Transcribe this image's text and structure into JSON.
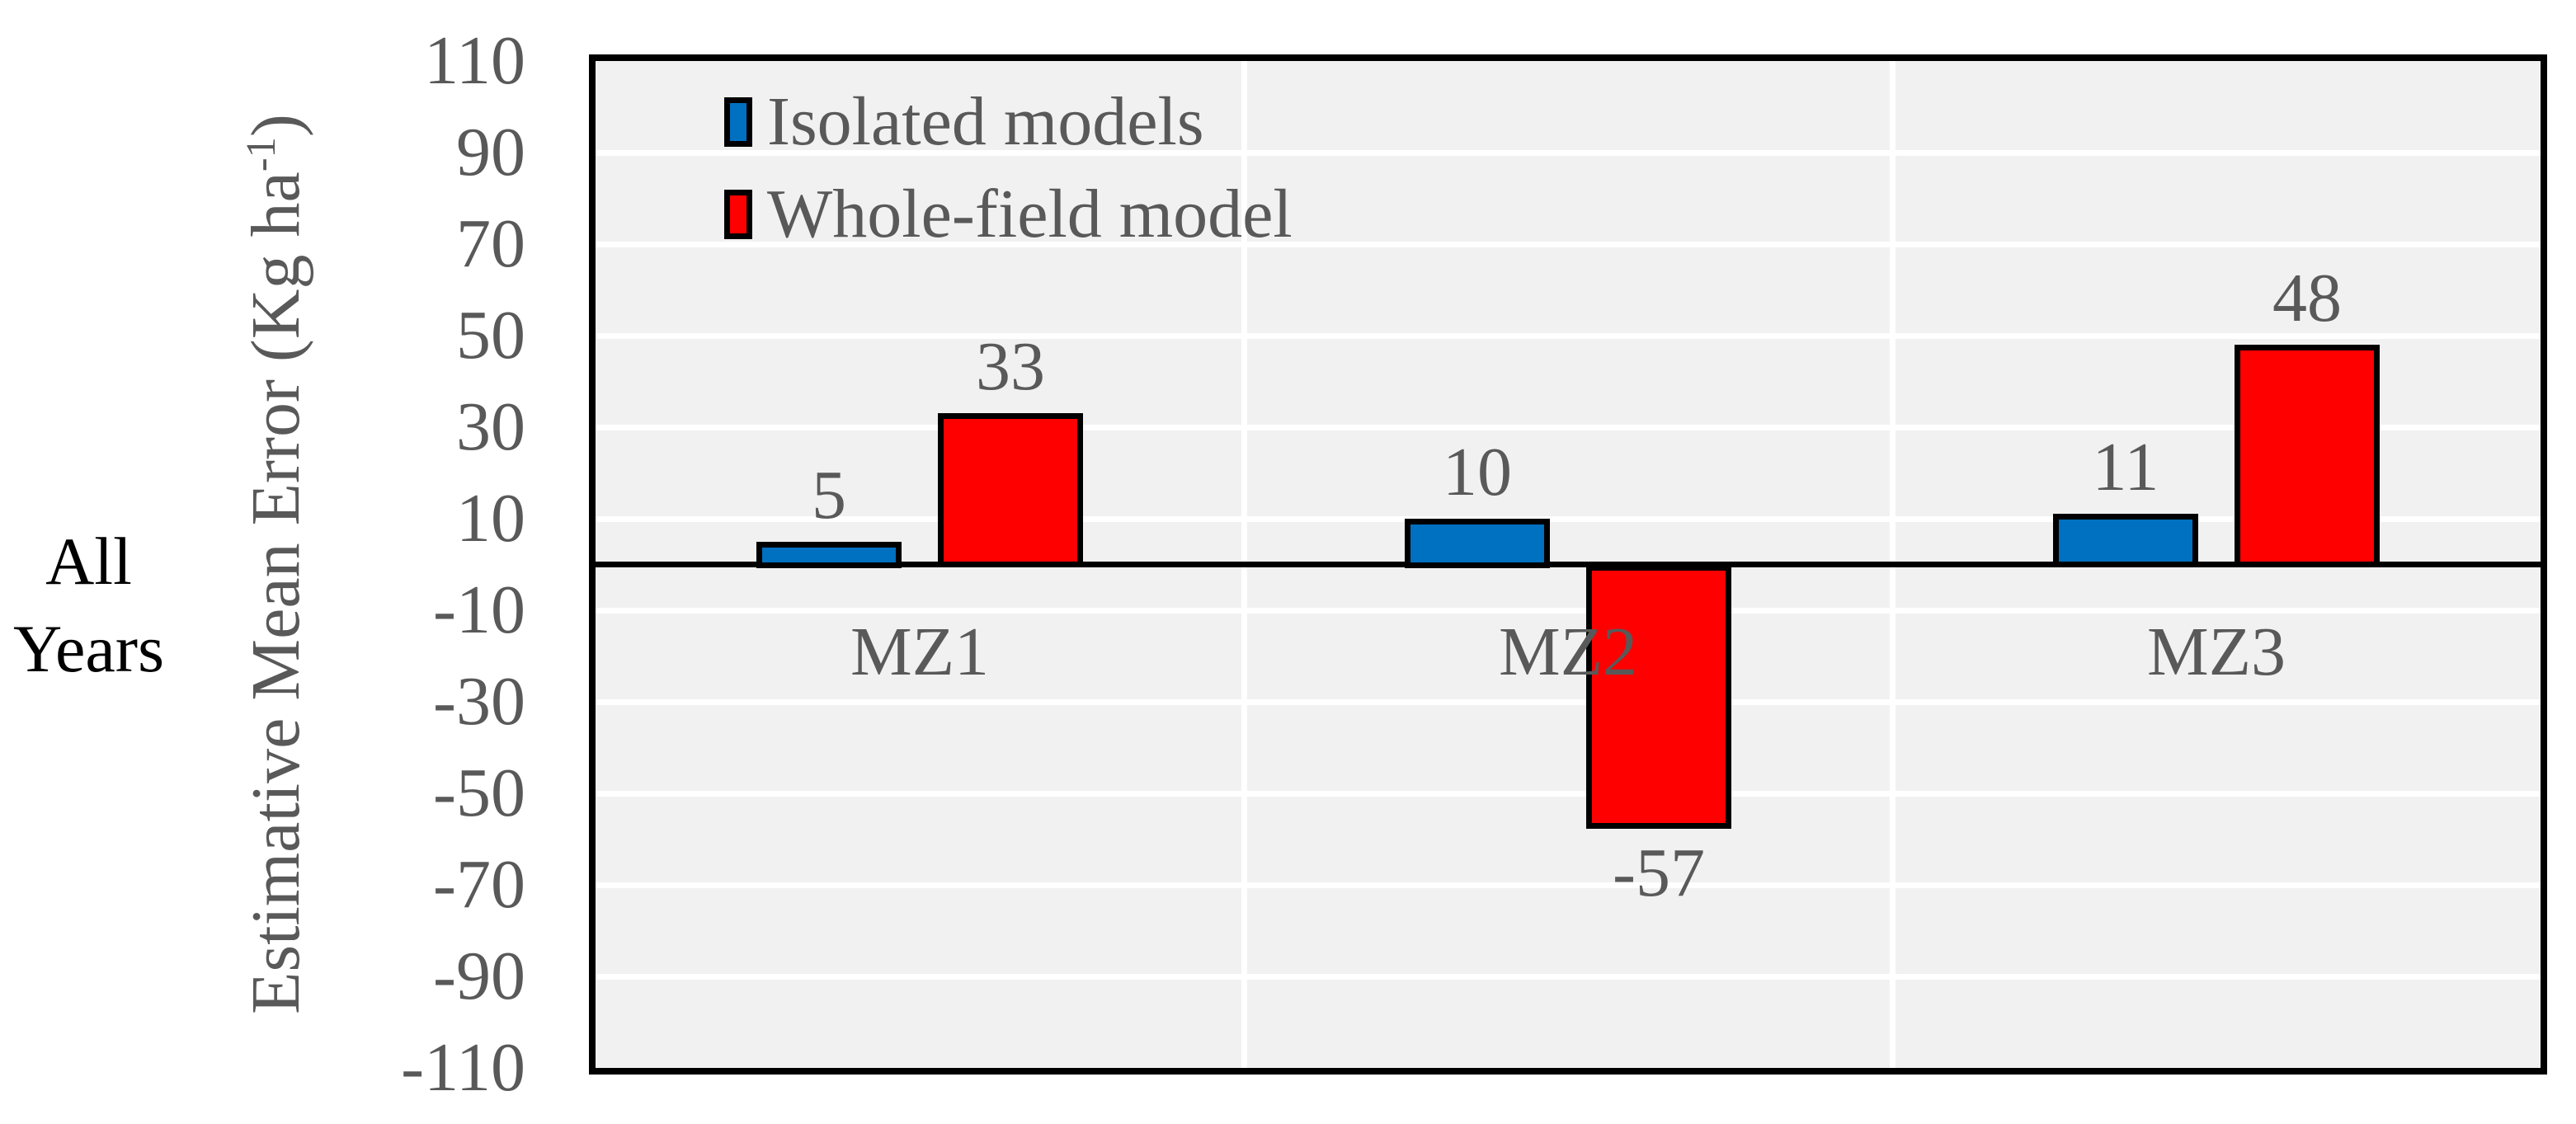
{
  "row_label": {
    "lines": [
      "All",
      "Years"
    ]
  },
  "y_axis": {
    "title_prefix": "Estimative Mean Error (Kg ha",
    "title_sup": "-1",
    "title_suffix": ")",
    "tick_values": [
      110,
      90,
      70,
      50,
      30,
      10,
      -10,
      -30,
      -50,
      -70,
      -90,
      -110
    ]
  },
  "chart_data": {
    "type": "bar",
    "categories": [
      "MZ1",
      "MZ2",
      "MZ3"
    ],
    "series": [
      {
        "name": "Isolated models",
        "color": "#0070C0",
        "values": [
          5,
          10,
          11
        ]
      },
      {
        "name": "Whole-field model",
        "color": "#FF0000",
        "values": [
          33,
          -57,
          48
        ]
      }
    ],
    "data_labels": [
      [
        "5",
        "10",
        "11"
      ],
      [
        "33",
        "-57",
        "48"
      ]
    ],
    "title": "",
    "xlabel": "",
    "ylabel": "Estimative Mean Error (Kg ha-1)",
    "ylim": [
      -110,
      110
    ],
    "ytick_step": 20,
    "grid": true,
    "legend_position": "top-left-inside",
    "colors": {
      "plot_background": "#F1F1F1",
      "gridline": "#FFFFFF",
      "axis_and_borders": "#000000",
      "tick_text": "#595959",
      "row_label_text": "#000000"
    }
  }
}
